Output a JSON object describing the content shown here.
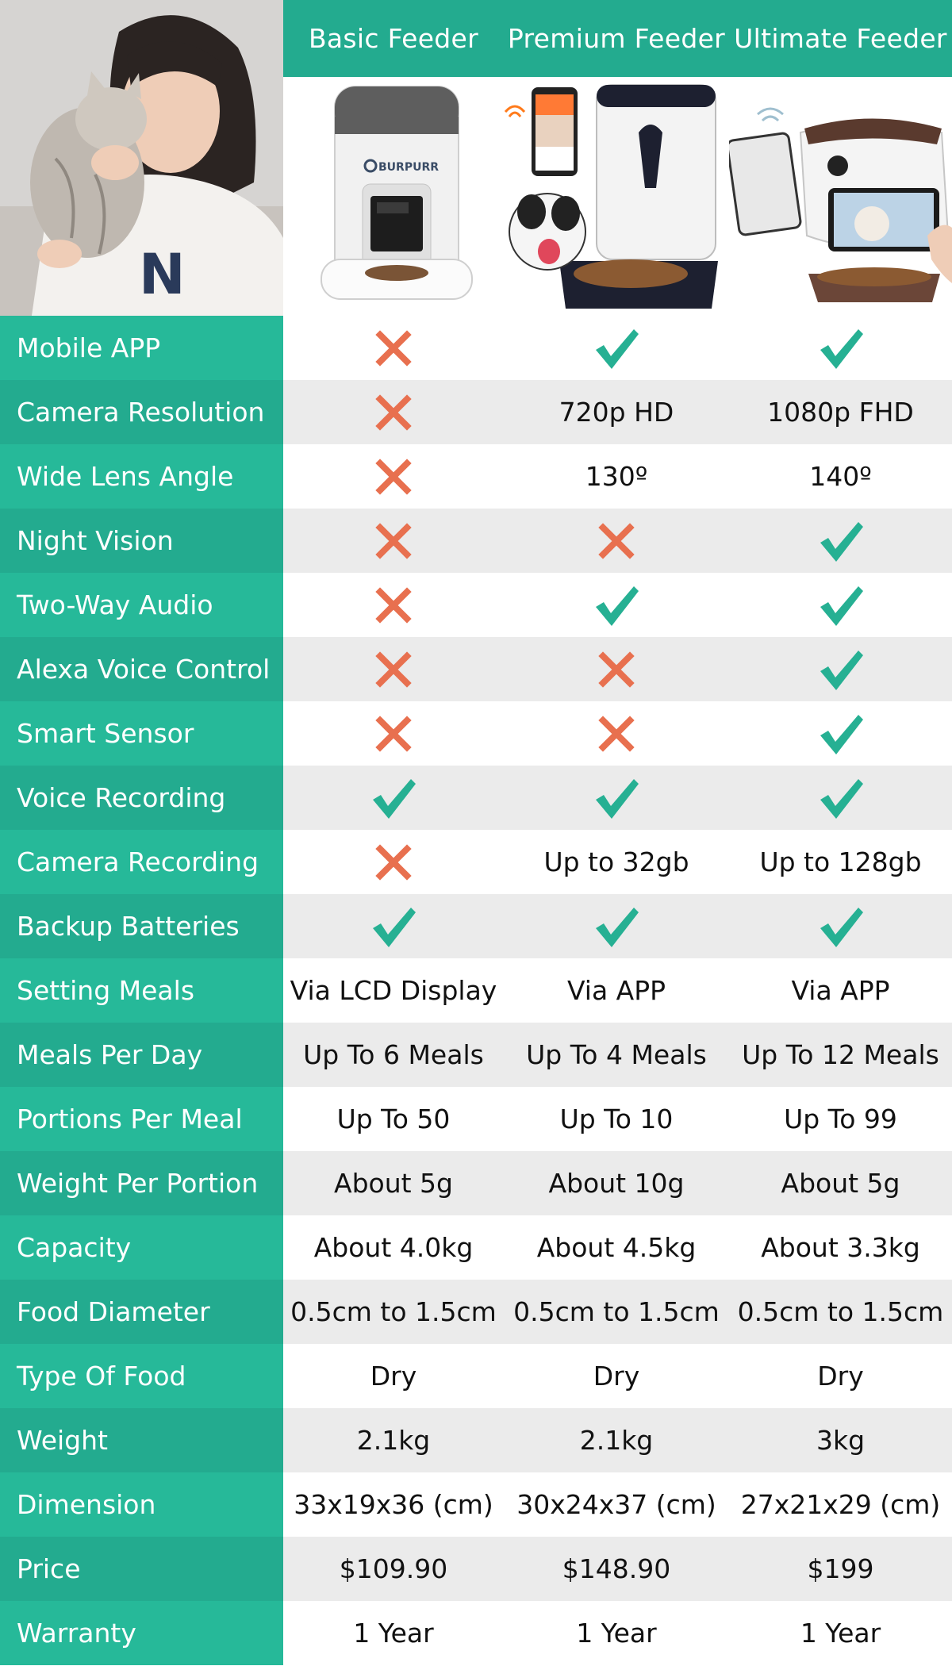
{
  "colors": {
    "teal": "#23ab8f",
    "teal_light": "#26b999",
    "cross": "#e8704f",
    "check": "#26b093",
    "row_gray": "#ebebeb"
  },
  "header": {
    "products": [
      "Basic Feeder",
      "Premium Feeder",
      "Ultimate Feeder"
    ]
  },
  "images": {
    "corner": "woman-kissing-cat-photo",
    "basic": {
      "name": "basic-feeder-photo",
      "brand": "BURPURR"
    },
    "premium": {
      "name": "premium-feeder-photo"
    },
    "ultimate": {
      "name": "ultimate-feeder-photo"
    }
  },
  "rows": [
    {
      "label": "Mobile APP",
      "values": [
        {
          "icon": "cross-icon"
        },
        {
          "icon": "check-icon"
        },
        {
          "icon": "check-icon"
        }
      ]
    },
    {
      "label": "Camera Resolution",
      "values": [
        {
          "icon": "cross-icon"
        },
        {
          "text": "720p HD"
        },
        {
          "text": "1080p FHD"
        }
      ]
    },
    {
      "label": "Wide Lens Angle",
      "values": [
        {
          "icon": "cross-icon"
        },
        {
          "text": "130º"
        },
        {
          "text": "140º"
        }
      ]
    },
    {
      "label": "Night Vision",
      "values": [
        {
          "icon": "cross-icon"
        },
        {
          "icon": "cross-icon"
        },
        {
          "icon": "check-icon"
        }
      ]
    },
    {
      "label": "Two-Way Audio",
      "values": [
        {
          "icon": "cross-icon"
        },
        {
          "icon": "check-icon"
        },
        {
          "icon": "check-icon"
        }
      ]
    },
    {
      "label": "Alexa Voice Control",
      "values": [
        {
          "icon": "cross-icon"
        },
        {
          "icon": "cross-icon"
        },
        {
          "icon": "check-icon"
        }
      ]
    },
    {
      "label": "Smart Sensor",
      "values": [
        {
          "icon": "cross-icon"
        },
        {
          "icon": "cross-icon"
        },
        {
          "icon": "check-icon"
        }
      ]
    },
    {
      "label": "Voice Recording",
      "values": [
        {
          "icon": "check-icon"
        },
        {
          "icon": "check-icon"
        },
        {
          "icon": "check-icon"
        }
      ]
    },
    {
      "label": "Camera Recording",
      "values": [
        {
          "icon": "cross-icon"
        },
        {
          "text": "Up to 32gb"
        },
        {
          "text": "Up to 128gb"
        }
      ]
    },
    {
      "label": "Backup Batteries",
      "values": [
        {
          "icon": "check-icon"
        },
        {
          "icon": "check-icon"
        },
        {
          "icon": "check-icon"
        }
      ]
    },
    {
      "label": "Setting Meals",
      "values": [
        {
          "text": "Via LCD Display"
        },
        {
          "text": "Via APP"
        },
        {
          "text": "Via APP"
        }
      ]
    },
    {
      "label": "Meals Per Day",
      "values": [
        {
          "text": "Up To 6 Meals"
        },
        {
          "text": "Up To 4 Meals"
        },
        {
          "text": "Up To 12 Meals"
        }
      ]
    },
    {
      "label": "Portions Per Meal",
      "values": [
        {
          "text": "Up To 50"
        },
        {
          "text": "Up To 10"
        },
        {
          "text": "Up To 99"
        }
      ]
    },
    {
      "label": "Weight Per Portion",
      "values": [
        {
          "text": "About  5g"
        },
        {
          "text": "About 10g"
        },
        {
          "text": "About 5g"
        }
      ]
    },
    {
      "label": "Capacity",
      "values": [
        {
          "text": "About 4.0kg"
        },
        {
          "text": "About 4.5kg"
        },
        {
          "text": "About 3.3kg"
        }
      ]
    },
    {
      "label": "Food Diameter",
      "values": [
        {
          "text": "0.5cm to 1.5cm"
        },
        {
          "text": "0.5cm to 1.5cm"
        },
        {
          "text": "0.5cm to 1.5cm"
        }
      ]
    },
    {
      "label": "Type Of Food",
      "values": [
        {
          "text": "Dry"
        },
        {
          "text": "Dry"
        },
        {
          "text": "Dry"
        }
      ]
    },
    {
      "label": "Weight",
      "values": [
        {
          "text": "2.1kg"
        },
        {
          "text": "2.1kg"
        },
        {
          "text": "3kg"
        }
      ]
    },
    {
      "label": "Dimension",
      "values": [
        {
          "text": "33x19x36 (cm)"
        },
        {
          "text": "30x24x37 (cm)"
        },
        {
          "text": "27x21x29 (cm)"
        }
      ]
    },
    {
      "label": "Price",
      "values": [
        {
          "text": "$109.90"
        },
        {
          "text": "$148.90"
        },
        {
          "text": "$199"
        }
      ]
    },
    {
      "label": "Warranty",
      "values": [
        {
          "text": "1 Year"
        },
        {
          "text": "1 Year"
        },
        {
          "text": "1 Year"
        }
      ]
    }
  ]
}
